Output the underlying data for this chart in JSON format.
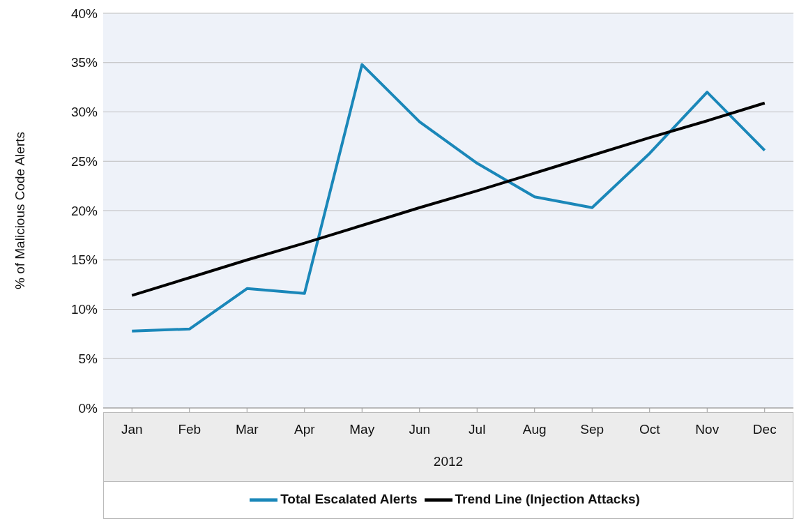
{
  "chart_data": {
    "type": "line",
    "ylabel": "% of Malicious Code Alerts",
    "xlabel": "2012",
    "categories": [
      "Jan",
      "Feb",
      "Mar",
      "Apr",
      "May",
      "Jun",
      "Jul",
      "Aug",
      "Sep",
      "Oct",
      "Nov",
      "Dec"
    ],
    "series": [
      {
        "name": "Total Escalated Alerts",
        "color": "#1a87b9",
        "values": [
          7.8,
          8.0,
          12.1,
          11.6,
          34.8,
          29.0,
          24.8,
          21.4,
          20.3,
          25.8,
          32.0,
          26.1
        ]
      },
      {
        "name": "Trend Line (Injection Attacks)",
        "color": "#000000",
        "values": [
          11.4,
          13.2,
          15.0,
          16.7,
          18.5,
          20.3,
          22.0,
          23.8,
          25.6,
          27.4,
          29.1,
          30.9
        ]
      }
    ],
    "ylim": [
      0,
      40
    ],
    "yticks": [
      {
        "value": 0,
        "label": "0%"
      },
      {
        "value": 5,
        "label": "5%"
      },
      {
        "value": 10,
        "label": "10%"
      },
      {
        "value": 15,
        "label": "15%"
      },
      {
        "value": 20,
        "label": "20%"
      },
      {
        "value": 25,
        "label": "25%"
      },
      {
        "value": 30,
        "label": "30%"
      },
      {
        "value": 35,
        "label": "35%"
      },
      {
        "value": 40,
        "label": "40%"
      }
    ],
    "grid": "y",
    "legend": "bottom",
    "marker": "none",
    "line_style": "solid"
  }
}
